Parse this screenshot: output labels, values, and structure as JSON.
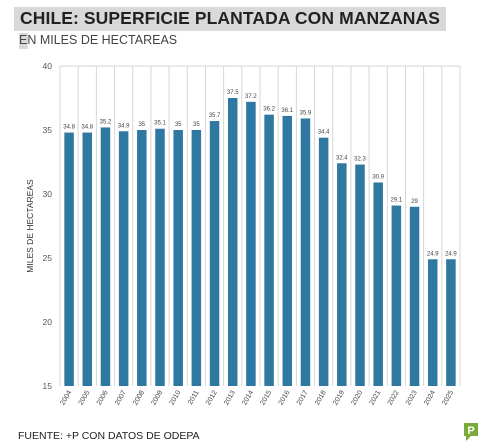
{
  "header": {
    "title": "CHILE: SUPERFICIE PLANTADA CON MANZANAS",
    "subtitle": "EN MILES DE HECTAREAS"
  },
  "footer": {
    "source": "FUENTE: +P CON DATOS DE ODEPA",
    "logo_glyph": "P"
  },
  "colors": {
    "bar": "#2e78a1",
    "gridline": "#d6d6d6",
    "axis_text": "#555555",
    "title_highlight": "#d9d9d9",
    "logo": "#7aaa3b"
  },
  "chart_data": {
    "type": "bar",
    "title": "CHILE: SUPERFICIE PLANTADA CON MANZANAS",
    "subtitle": "EN MILES DE HECTAREAS",
    "xlabel": "",
    "ylabel": "MILES DE HECTAREAS",
    "ylim": [
      15,
      40
    ],
    "yticks": [
      15,
      20,
      25,
      30,
      35,
      40
    ],
    "grid": "vertical",
    "categories": [
      "2004",
      "2005",
      "2006",
      "2007",
      "2008",
      "2009",
      "2010",
      "2011",
      "2012",
      "2013",
      "2014",
      "2015",
      "2016",
      "2017",
      "2018",
      "2019",
      "2020",
      "2021",
      "2022",
      "2023",
      "2024",
      "2025"
    ],
    "values": [
      34.8,
      34.8,
      35.2,
      34.9,
      35,
      35.1,
      35,
      35,
      35.7,
      37.5,
      37.2,
      36.2,
      36.1,
      35.9,
      34.4,
      32.4,
      32.3,
      30.9,
      29.1,
      29,
      24.9,
      24.9
    ],
    "value_labels": [
      "34.8",
      "34.8",
      "35.2",
      "34.9",
      "35",
      "35.1",
      "35",
      "35",
      "35.7",
      "37.5",
      "37.2",
      "36.2",
      "36.1",
      "35.9",
      "34.4",
      "32.4",
      "32.3",
      "30.9",
      "29.1",
      "29",
      "24.9",
      "24.9"
    ]
  }
}
